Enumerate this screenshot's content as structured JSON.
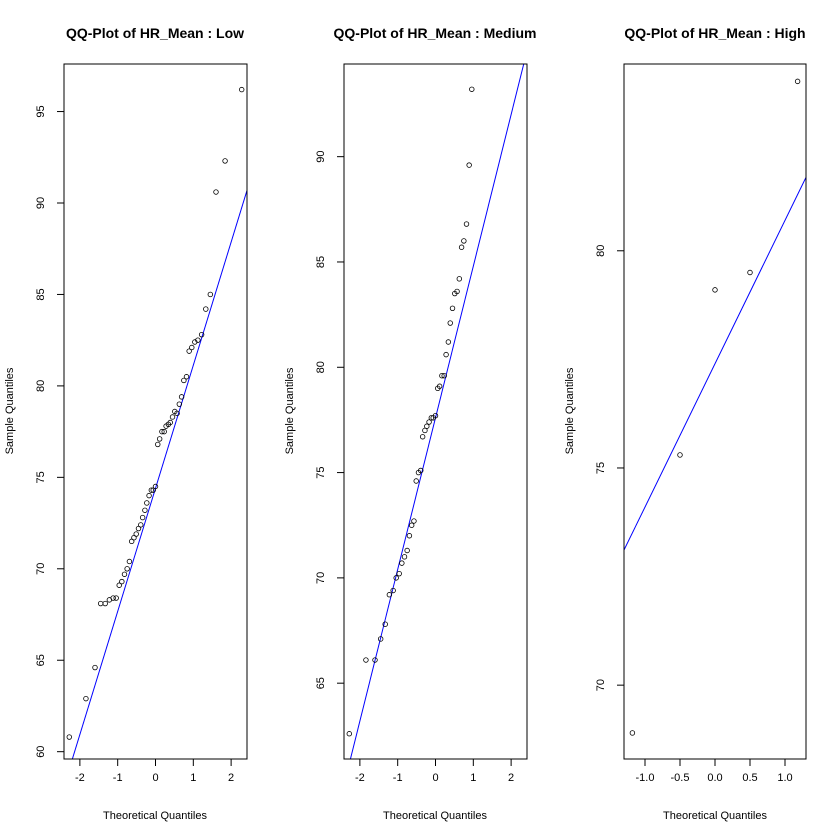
{
  "colors": {
    "background": "#ffffff",
    "frame": "#000000",
    "points": "#000000",
    "line": "#0000ff"
  },
  "chart_data": [
    {
      "type": "scatter",
      "title": "QQ-Plot of HR_Mean : Low",
      "xlabel": "Theoretical Quantiles",
      "ylabel": "Sample Quantiles",
      "xlim": [
        -2.42,
        2.42
      ],
      "ylim": [
        59.6,
        97.6
      ],
      "xticks": [
        -2,
        -1,
        0,
        1,
        2
      ],
      "yticks": [
        60,
        65,
        70,
        75,
        80,
        85,
        90,
        95
      ],
      "points": [
        [
          -2.28,
          60.8
        ],
        [
          -1.84,
          62.9
        ],
        [
          -1.6,
          64.6
        ],
        [
          -1.45,
          68.1
        ],
        [
          -1.33,
          68.1
        ],
        [
          -1.22,
          68.3
        ],
        [
          -1.12,
          68.4
        ],
        [
          -1.04,
          68.4
        ],
        [
          -0.96,
          69.1
        ],
        [
          -0.89,
          69.3
        ],
        [
          -0.82,
          69.7
        ],
        [
          -0.75,
          70.0
        ],
        [
          -0.69,
          70.4
        ],
        [
          -0.63,
          71.5
        ],
        [
          -0.57,
          71.7
        ],
        [
          -0.51,
          71.9
        ],
        [
          -0.45,
          72.2
        ],
        [
          -0.39,
          72.4
        ],
        [
          -0.34,
          72.8
        ],
        [
          -0.28,
          73.2
        ],
        [
          -0.23,
          73.6
        ],
        [
          -0.17,
          74.0
        ],
        [
          -0.11,
          74.3
        ],
        [
          -0.06,
          74.3
        ],
        [
          0.0,
          74.5
        ],
        [
          0.06,
          76.8
        ],
        [
          0.11,
          77.1
        ],
        [
          0.17,
          77.5
        ],
        [
          0.23,
          77.5
        ],
        [
          0.28,
          77.8
        ],
        [
          0.34,
          77.9
        ],
        [
          0.39,
          78.0
        ],
        [
          0.45,
          78.3
        ],
        [
          0.51,
          78.6
        ],
        [
          0.57,
          78.5
        ],
        [
          0.63,
          79.0
        ],
        [
          0.69,
          79.4
        ],
        [
          0.75,
          80.3
        ],
        [
          0.82,
          80.5
        ],
        [
          0.89,
          81.9
        ],
        [
          0.96,
          82.1
        ],
        [
          1.04,
          82.4
        ],
        [
          1.12,
          82.5
        ],
        [
          1.22,
          82.8
        ],
        [
          1.33,
          84.2
        ],
        [
          1.45,
          85.0
        ],
        [
          1.6,
          90.6
        ],
        [
          1.84,
          92.3
        ],
        [
          2.28,
          96.2
        ]
      ],
      "line": {
        "intercept": 74.4,
        "slope": 6.73
      }
    },
    {
      "type": "scatter",
      "title": "QQ-Plot of HR_Mean : Medium",
      "xlabel": "Theoretical Quantiles",
      "ylabel": "Sample Quantiles",
      "xlim": [
        -2.42,
        2.42
      ],
      "ylim": [
        61.4,
        94.4
      ],
      "xticks": [
        -2,
        -1,
        0,
        1,
        2
      ],
      "yticks": [
        65,
        70,
        75,
        80,
        85,
        90
      ],
      "points": [
        [
          -2.28,
          62.6
        ],
        [
          -1.84,
          66.1
        ],
        [
          -1.6,
          66.1
        ],
        [
          -1.45,
          67.1
        ],
        [
          -1.33,
          67.8
        ],
        [
          -1.22,
          69.2
        ],
        [
          -1.12,
          69.4
        ],
        [
          -1.04,
          70.0
        ],
        [
          -0.96,
          70.2
        ],
        [
          -0.89,
          70.7
        ],
        [
          -0.82,
          71.0
        ],
        [
          -0.75,
          71.3
        ],
        [
          -0.69,
          72.0
        ],
        [
          -0.63,
          72.5
        ],
        [
          -0.57,
          72.7
        ],
        [
          -0.51,
          74.6
        ],
        [
          -0.45,
          75.0
        ],
        [
          -0.39,
          75.1
        ],
        [
          -0.34,
          76.7
        ],
        [
          -0.28,
          77.0
        ],
        [
          -0.23,
          77.2
        ],
        [
          -0.17,
          77.4
        ],
        [
          -0.11,
          77.6
        ],
        [
          -0.06,
          77.6
        ],
        [
          0.0,
          77.7
        ],
        [
          0.06,
          79.0
        ],
        [
          0.11,
          79.1
        ],
        [
          0.17,
          79.6
        ],
        [
          0.23,
          79.6
        ],
        [
          0.28,
          80.6
        ],
        [
          0.34,
          81.2
        ],
        [
          0.39,
          82.1
        ],
        [
          0.45,
          82.8
        ],
        [
          0.51,
          83.5
        ],
        [
          0.57,
          83.6
        ],
        [
          0.63,
          84.2
        ],
        [
          0.69,
          85.7
        ],
        [
          0.75,
          86.0
        ],
        [
          0.82,
          86.8
        ],
        [
          0.89,
          89.6
        ],
        [
          0.96,
          93.2
        ]
      ],
      "line": {
        "intercept": 77.6,
        "slope": 7.2
      }
    },
    {
      "type": "scatter",
      "title": "QQ-Plot of HR_Mean : High",
      "xlabel": "Theoretical Quantiles",
      "ylabel": "Sample Quantiles",
      "xlim": [
        -1.3,
        1.3
      ],
      "ylim": [
        68.3,
        84.3
      ],
      "xticks": [
        -1.0,
        -0.5,
        0.0,
        0.5,
        1.0
      ],
      "yticks": [
        70,
        75,
        80
      ],
      "points": [
        [
          -1.18,
          68.9
        ],
        [
          -0.5,
          75.3
        ],
        [
          0.0,
          79.1
        ],
        [
          0.5,
          79.5
        ],
        [
          1.18,
          83.9
        ]
      ],
      "line": {
        "intercept": 77.4,
        "slope": 3.3
      }
    }
  ]
}
